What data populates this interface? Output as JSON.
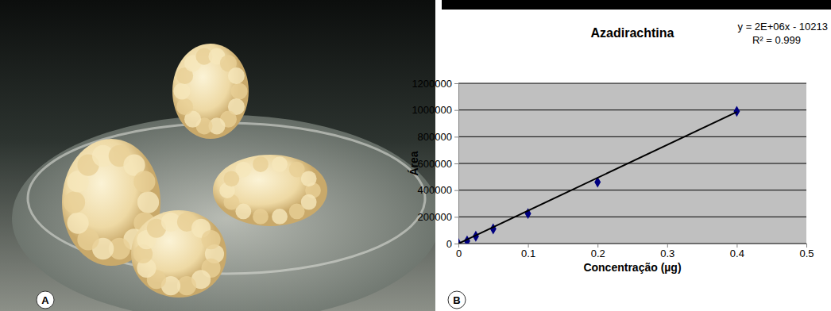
{
  "panel_labels": [
    "A",
    "B"
  ],
  "chart_data": {
    "type": "scatter",
    "title": "Azadirachtina",
    "x_label": "Concentração (µg)",
    "y_label": "Área",
    "annotations": [
      "y = 2E+06x - 10213",
      "R² = 0.999"
    ],
    "xlim": [
      0,
      0.5
    ],
    "xticks": [
      0,
      0.1,
      0.2,
      0.3,
      0.4,
      0.5
    ],
    "ylim": [
      0,
      1200000
    ],
    "yticks": [
      0,
      200000,
      400000,
      600000,
      800000,
      1000000,
      1200000
    ],
    "grid": true,
    "series": [
      {
        "type": "scatter",
        "color": "#000080",
        "marker": "diamond",
        "x": [
          0,
          0.0125,
          0.025,
          0.05,
          0.1,
          0.2,
          0.4
        ],
        "values": [
          0,
          20000,
          55000,
          110000,
          225000,
          460000,
          990000
        ]
      },
      {
        "type": "line",
        "color": "#000000",
        "line_style": "solid",
        "x": [
          0,
          0.4
        ],
        "values": [
          0,
          985000
        ]
      }
    ]
  }
}
